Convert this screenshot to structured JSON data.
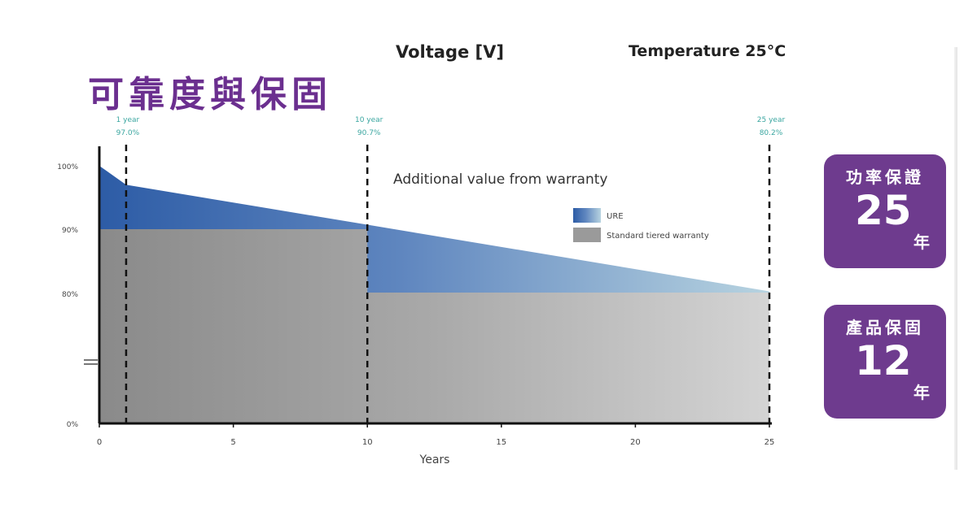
{
  "header": {
    "voltage": "Voltage [V]",
    "temperature": "Temperature 25°C",
    "title": "可靠度與保固"
  },
  "badges": [
    {
      "title": "功率保證",
      "number": "25",
      "unit": "年"
    },
    {
      "title": "產品保固",
      "number": "12",
      "unit": "年"
    }
  ],
  "chart_data": {
    "type": "area",
    "title": "Additional value from warranty",
    "xlabel": "Years",
    "ylabel": "",
    "xlim": [
      0,
      25
    ],
    "x_ticks": [
      0,
      5,
      10,
      15,
      20,
      25
    ],
    "y_ticks": [
      "0%",
      "80%",
      "90%",
      "100%"
    ],
    "axis_break": true,
    "legend_position": "right",
    "colors": {
      "ure": "#2f5fa8",
      "standard": "#8f8f8f"
    },
    "series": [
      {
        "name": "URE",
        "x": [
          0,
          1,
          10,
          25
        ],
        "y": [
          100,
          97.0,
          90.7,
          80.2
        ]
      },
      {
        "name": "Standard tiered warranty",
        "x": [
          0,
          10,
          10,
          25
        ],
        "y": [
          90,
          90,
          80,
          80
        ]
      }
    ],
    "annotations": [
      {
        "x": 1,
        "line1": "1 year",
        "line2": "97.0%"
      },
      {
        "x": 10,
        "line1": "10 year",
        "line2": "90.7%"
      },
      {
        "x": 25,
        "line1": "25 year",
        "line2": "80.2%"
      }
    ]
  }
}
